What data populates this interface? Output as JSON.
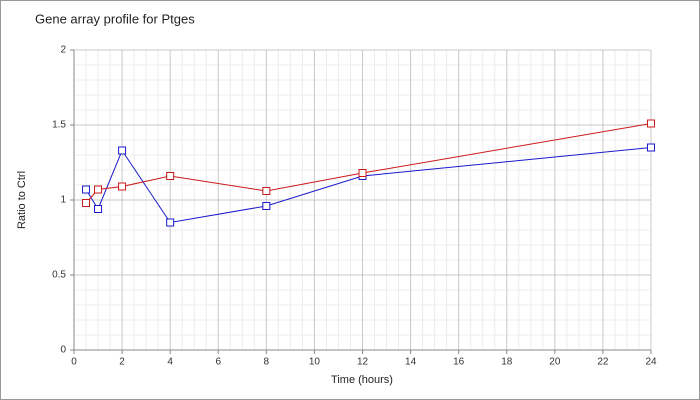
{
  "chart_data": {
    "type": "line",
    "title": "Gene array profile for Ptges",
    "x_label": "Time (hours)",
    "y_label": "Ratio to Ctrl",
    "x": [
      0.5,
      1,
      2,
      4,
      8,
      12,
      24
    ],
    "series": [
      {
        "color": "#1a1acc",
        "values": [
          1.07,
          0.94,
          1.33,
          0.85,
          0.96,
          1.16,
          1.35
        ]
      },
      {
        "color": "#cc1a1a",
        "values": [
          0.98,
          1.07,
          1.09,
          1.16,
          1.06,
          1.18,
          1.51
        ]
      }
    ],
    "xlim": [
      0,
      24
    ],
    "xticks": [
      0,
      2,
      4,
      6,
      8,
      10,
      12,
      14,
      16,
      18,
      20,
      22,
      24
    ],
    "ylim": [
      0,
      2
    ],
    "yticks": [
      0,
      0.5,
      1,
      1.5,
      2
    ],
    "grid": true,
    "minor_grid": true
  }
}
